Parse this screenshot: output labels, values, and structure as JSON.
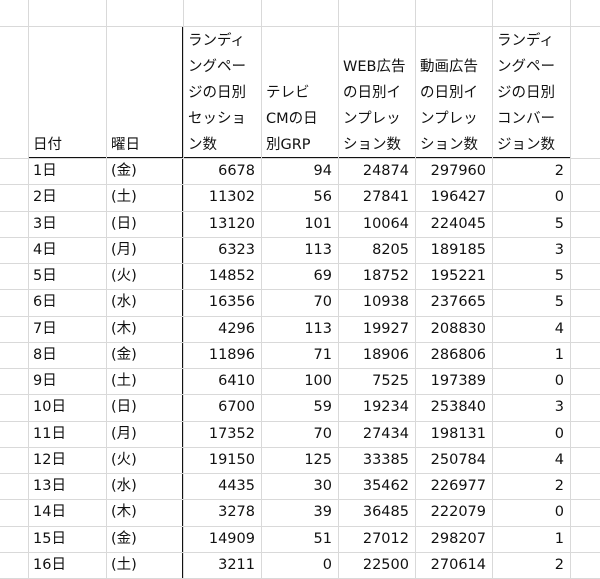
{
  "sheet": {
    "headers": [
      {
        "lines": [
          "日付"
        ]
      },
      {
        "lines": [
          "曜日"
        ]
      },
      {
        "lines": [
          "ランディ",
          "ングペー",
          "ジの日別",
          "セッショ",
          "ン数"
        ]
      },
      {
        "lines": [
          "テレビ",
          "CMの日",
          "別GRP"
        ]
      },
      {
        "lines": [
          "WEB広告",
          "の日別イ",
          "ンプレッ",
          "ション数"
        ]
      },
      {
        "lines": [
          "動画広告",
          "の日別イ",
          "ンプレッ",
          "ション数"
        ]
      },
      {
        "lines": [
          "ランディ",
          "ングペー",
          "ジの日別",
          "コンバー",
          "ジョン数"
        ]
      }
    ],
    "rows": [
      [
        "1日",
        "(金)",
        6678,
        94,
        24874,
        297960,
        2
      ],
      [
        "2日",
        "(土)",
        11302,
        56,
        27841,
        196427,
        0
      ],
      [
        "3日",
        "(日)",
        13120,
        101,
        10064,
        224045,
        5
      ],
      [
        "4日",
        "(月)",
        6323,
        113,
        8205,
        189185,
        3
      ],
      [
        "5日",
        "(火)",
        14852,
        69,
        18752,
        195221,
        5
      ],
      [
        "6日",
        "(水)",
        16356,
        70,
        10938,
        237665,
        5
      ],
      [
        "7日",
        "(木)",
        4296,
        113,
        19927,
        208830,
        4
      ],
      [
        "8日",
        "(金)",
        11896,
        71,
        18906,
        286806,
        1
      ],
      [
        "9日",
        "(土)",
        6410,
        100,
        7525,
        197389,
        0
      ],
      [
        "10日",
        "(日)",
        6700,
        59,
        19234,
        253840,
        3
      ],
      [
        "11日",
        "(月)",
        17352,
        70,
        27434,
        198131,
        0
      ],
      [
        "12日",
        "(火)",
        19150,
        125,
        33385,
        250784,
        4
      ],
      [
        "13日",
        "(水)",
        4435,
        30,
        35462,
        226977,
        2
      ],
      [
        "14日",
        "(木)",
        3278,
        39,
        36485,
        222079,
        0
      ],
      [
        "15日",
        "(金)",
        14909,
        51,
        27012,
        298207,
        1
      ],
      [
        "16日",
        "(土)",
        3211,
        0,
        22500,
        270614,
        2
      ]
    ]
  }
}
